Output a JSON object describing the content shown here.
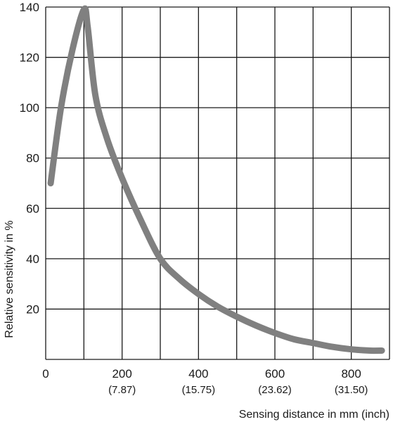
{
  "chart_data": {
    "type": "line",
    "title": "",
    "xlabel": "Sensing distance in mm (inch)",
    "ylabel": "Relative sensitivity in %",
    "xlim": [
      0,
      900
    ],
    "ylim": [
      0,
      140
    ],
    "grid": true,
    "x_gridlines": [
      0,
      100,
      200,
      300,
      400,
      500,
      600,
      700,
      800,
      900
    ],
    "y_gridlines": [
      0,
      20,
      40,
      60,
      80,
      100,
      120,
      140
    ],
    "x_ticks": [
      {
        "value": 0,
        "label": "0",
        "sublabel": ""
      },
      {
        "value": 200,
        "label": "200",
        "sublabel": "(7.87)"
      },
      {
        "value": 400,
        "label": "400",
        "sublabel": "(15.75)"
      },
      {
        "value": 600,
        "label": "600",
        "sublabel": "(23.62)"
      },
      {
        "value": 800,
        "label": "800",
        "sublabel": "(31.50)"
      }
    ],
    "y_ticks": [
      {
        "value": 20,
        "label": "20"
      },
      {
        "value": 40,
        "label": "40"
      },
      {
        "value": 60,
        "label": "60"
      },
      {
        "value": 80,
        "label": "80"
      },
      {
        "value": 100,
        "label": "100"
      },
      {
        "value": 120,
        "label": "120"
      },
      {
        "value": 140,
        "label": "140"
      }
    ],
    "series": [
      {
        "color": "#808080",
        "x": [
          13,
          40,
          70,
          100,
          110,
          130,
          160,
          200,
          250,
          300,
          350,
          400,
          450,
          500,
          550,
          600,
          650,
          700,
          750,
          800,
          850,
          880
        ],
        "y": [
          70,
          100,
          123,
          139,
          132,
          105,
          88,
          72,
          55,
          40,
          32,
          26,
          21,
          17,
          13.5,
          10.5,
          8,
          6.5,
          5,
          4,
          3.5,
          3.5
        ]
      }
    ],
    "colors": {
      "grid": "#1a1a1a",
      "text": "#1a1a1a",
      "line": "#808080"
    }
  }
}
